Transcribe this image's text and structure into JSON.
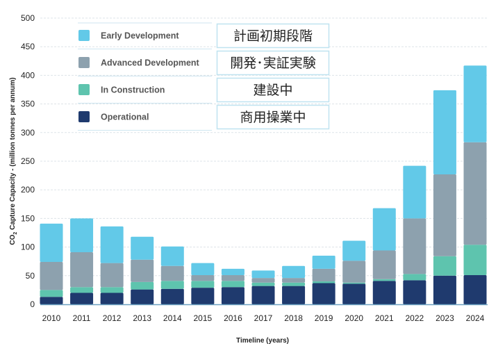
{
  "chart_data": {
    "type": "bar",
    "stacked": true,
    "title": "",
    "xlabel": "Timeline (years)",
    "ylabel_prefix": "CO",
    "ylabel_sub": "2",
    "ylabel_suffix": " Capture Capacity - (million tonnes per annum)",
    "ylim": [
      0,
      500
    ],
    "yticks": [
      0,
      50,
      100,
      150,
      200,
      250,
      300,
      350,
      400,
      450,
      500
    ],
    "grid": true,
    "legend_position": "top-left",
    "categories": [
      "2010",
      "2011",
      "2012",
      "2013",
      "2014",
      "2015",
      "2016",
      "2017",
      "2018",
      "2019",
      "2020",
      "2021",
      "2022",
      "2023",
      "2024"
    ],
    "series": [
      {
        "name": "Operational",
        "name_ja": "商用操業中",
        "color": "#1f3a6e",
        "values": [
          13,
          20,
          20,
          26,
          27,
          29,
          30,
          32,
          32,
          37,
          36,
          41,
          42,
          50,
          51
        ]
      },
      {
        "name": "In Construction",
        "name_ja": "建設中",
        "color": "#5ec4ae",
        "values": [
          12,
          10,
          10,
          13,
          14,
          12,
          11,
          6,
          6,
          3,
          2,
          3,
          11,
          34,
          53
        ]
      },
      {
        "name": "Advanced Development",
        "name_ja": "開発･実証実験",
        "color": "#8da1ae",
        "values": [
          49,
          61,
          42,
          39,
          26,
          10,
          10,
          8,
          8,
          22,
          38,
          50,
          97,
          143,
          179
        ]
      },
      {
        "name": "Early Development",
        "name_ja": "計画初期段階",
        "color": "#62c9e8",
        "values": [
          67,
          59,
          64,
          40,
          34,
          21,
          11,
          13,
          21,
          23,
          35,
          74,
          92,
          147,
          134
        ]
      }
    ]
  }
}
